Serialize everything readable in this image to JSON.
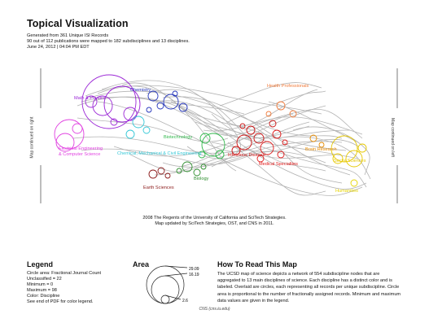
{
  "title": "Topical Visualization",
  "subtitle_lines": [
    "Generated from 361 Unique ISI Records",
    "90 out of 112 publications were mapped to 182 subdisciplines and 13 disciplines.",
    "June 24, 2012 | 04:04 PM EDT"
  ],
  "side_labels": {
    "left": "Map continued on right",
    "right": "Map continued on left"
  },
  "disciplines": [
    {
      "name": "Math & Physics",
      "color": "#9b27d6"
    },
    {
      "name": "Chemistry",
      "color": "#2233bb"
    },
    {
      "name": "Electrical Engineering",
      "color": "#e040e0"
    },
    {
      "name": "& Computer Science",
      "color": "#e040e0"
    },
    {
      "name": "Chemical, Mechanical & Civil Engineering",
      "color": "#33c7d6"
    },
    {
      "name": "Biotechnology",
      "color": "#2fb84a"
    },
    {
      "name": "Biology",
      "color": "#2f8f2f"
    },
    {
      "name": "Earth Sciences",
      "color": "#8b1a1a"
    },
    {
      "name": "Infectious Disease",
      "color": "#cc1111"
    },
    {
      "name": "Medical Specialties",
      "color": "#e01a1a"
    },
    {
      "name": "Health Professionals",
      "color": "#f07a3a"
    },
    {
      "name": "Brain Research",
      "color": "#e68a00"
    },
    {
      "name": "Social Sciences",
      "color": "#e6c800"
    },
    {
      "name": "Humanities",
      "color": "#e6d400"
    }
  ],
  "credit_lines": [
    "2008  The Regents of the University of California and SciTech Strategies.",
    "Map updated  by SciTech Strategies, OST, and CNS in 2011."
  ],
  "legend": {
    "title": "Legend",
    "lines": [
      "Circle area: Fractional Journal Count",
      "Unclassified = 22",
      "Minimum = 0",
      "Maximum = 98",
      "Color: Discipline",
      "See end of PDF for color legend."
    ]
  },
  "area": {
    "title": "Area",
    "values": [
      "29.09",
      "16.19",
      "2.6"
    ]
  },
  "howto": {
    "title": "How To Read This Map",
    "body": "The UCSD map of science depicts a network of 554 subdiscipline nodes that are aggregated to 13 main disciplines of science. Each discipline has a distinct color and is labeled. Overlaid are circles, each representing all records per unique subdiscipline. Circle area is proportional to the number of fractionally assigned records. Minimum and maximum data values are given in the legend."
  },
  "footer": "CNS (cns.iu.edu)"
}
